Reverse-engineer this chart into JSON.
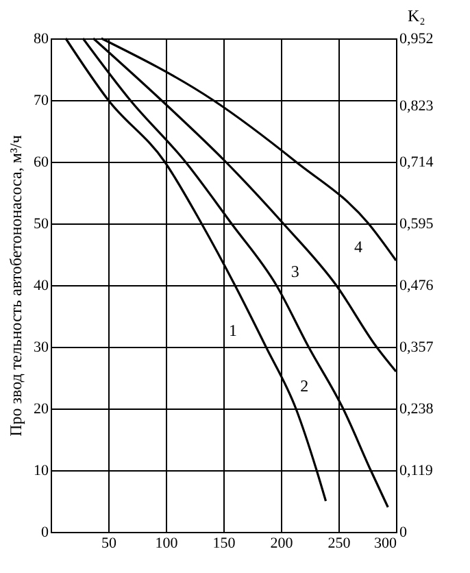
{
  "chart_data": {
    "type": "line",
    "ylabel": "Про звод тельность автобетононасоса, м³/ч",
    "y2label": "K₂",
    "xlim": [
      0,
      300
    ],
    "xticks": [
      50,
      100,
      150,
      200,
      250,
      300
    ],
    "ylim": [
      0,
      80
    ],
    "yticks": [
      0,
      10,
      20,
      30,
      40,
      50,
      60,
      70,
      80
    ],
    "y2lim": [
      0,
      0.952
    ],
    "y2ticks": [
      {
        "value": 0,
        "label": "0"
      },
      {
        "value": 0.119,
        "label": "0,119"
      },
      {
        "value": 0.238,
        "label": "0,238"
      },
      {
        "value": 0.357,
        "label": "0,357"
      },
      {
        "value": 0.476,
        "label": "0,476"
      },
      {
        "value": 0.595,
        "label": "0,595"
      },
      {
        "value": 0.714,
        "label": "0,714"
      },
      {
        "value": 0.823,
        "label": "0,823"
      },
      {
        "value": 0.952,
        "label": "0,952"
      }
    ],
    "grid": true,
    "line_style": "solid",
    "marker": "none",
    "series": [
      {
        "color": "#000000",
        "x": [
          13,
          50,
          99,
          131,
          160,
          187,
          213,
          231,
          239
        ],
        "values": [
          80,
          70,
          60,
          50,
          40,
          30,
          20,
          10,
          5
        ]
      },
      {
        "color": "#000000",
        "x": [
          28,
          69,
          117,
          157,
          196,
          224,
          254,
          278,
          293
        ],
        "values": [
          80,
          70,
          60,
          50,
          40,
          30,
          20,
          10,
          4
        ]
      },
      {
        "color": "#000000",
        "x": [
          37,
          96,
          152,
          202,
          248,
          283,
          300
        ],
        "values": [
          80,
          70,
          60,
          50,
          40,
          30,
          26
        ]
      },
      {
        "color": "#000000",
        "x": [
          44,
          141,
          213,
          276,
          300
        ],
        "values": [
          80,
          70,
          60,
          50,
          44
        ]
      }
    ],
    "annotations": [
      {
        "text": "1",
        "x": 175,
        "y": 34.5
      },
      {
        "text": "2",
        "x": 237,
        "y": 25.5
      },
      {
        "text": "3",
        "x": 229,
        "y": 44
      },
      {
        "text": "4",
        "x": 284,
        "y": 48
      }
    ]
  }
}
